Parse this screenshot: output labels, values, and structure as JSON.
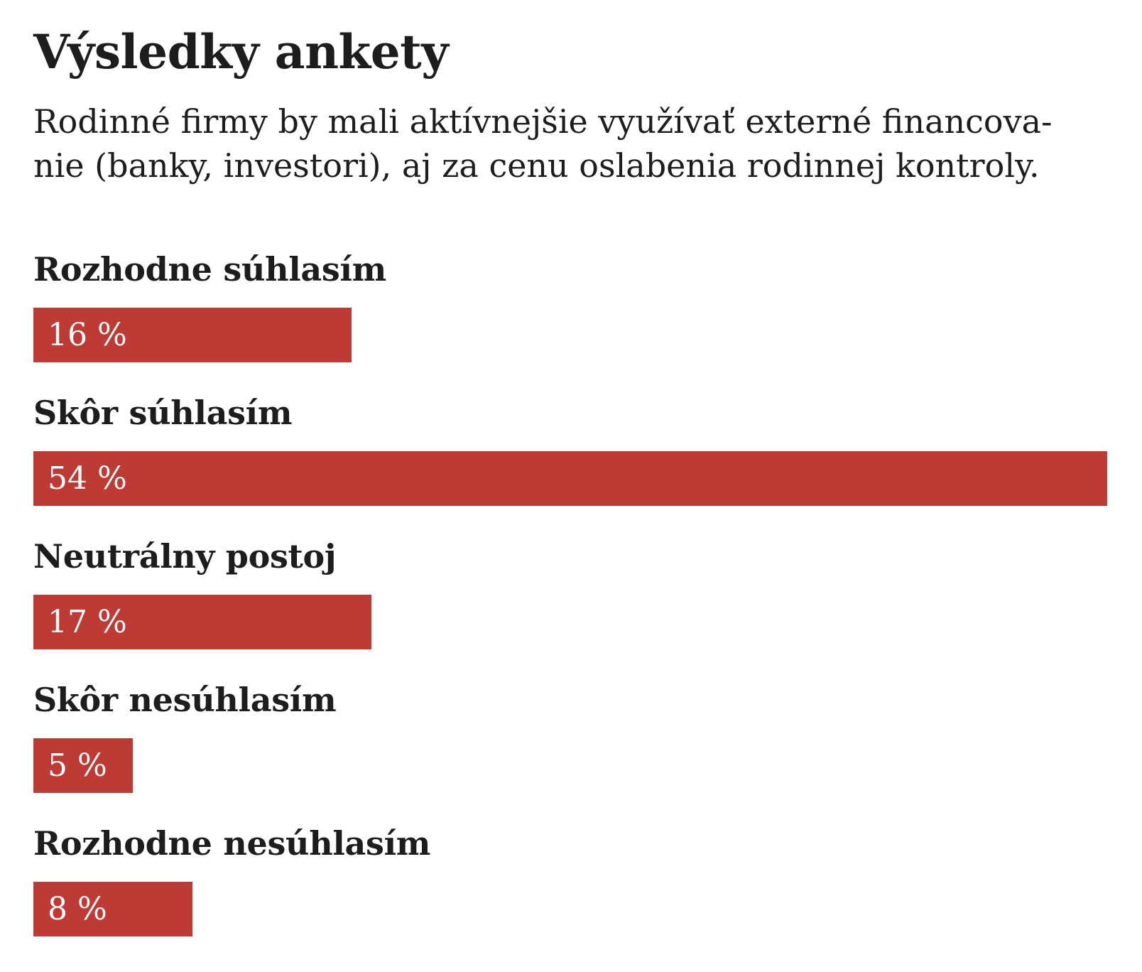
{
  "chart_data": {
    "type": "bar",
    "orientation": "horizontal",
    "title": "Výsledky ankety",
    "subtitle_lines": [
      "Rodinné firmy by mali aktívnejšie využívať externé financova-",
      "nie (banky, investori), aj za cenu oslabenia rodinnej kontroly."
    ],
    "categories": [
      "Rozhodne súhlasím",
      "Skôr súhlasím",
      "Neutrálny postoj",
      "Skôr nesúhlasím",
      "Rozhodne nesúhlasím"
    ],
    "values": [
      16,
      54,
      17,
      5,
      8
    ],
    "value_labels": [
      "16 %",
      "54 %",
      "17 %",
      "5 %",
      "8 %"
    ],
    "unit": "%",
    "xlim": [
      0,
      54
    ],
    "scale_max": 54,
    "grid": false,
    "legend": false,
    "colors": {
      "bar": "#bd3a35",
      "value_text": "#ffffff",
      "text": "#1d1d1b",
      "background": "#ffffff"
    }
  }
}
